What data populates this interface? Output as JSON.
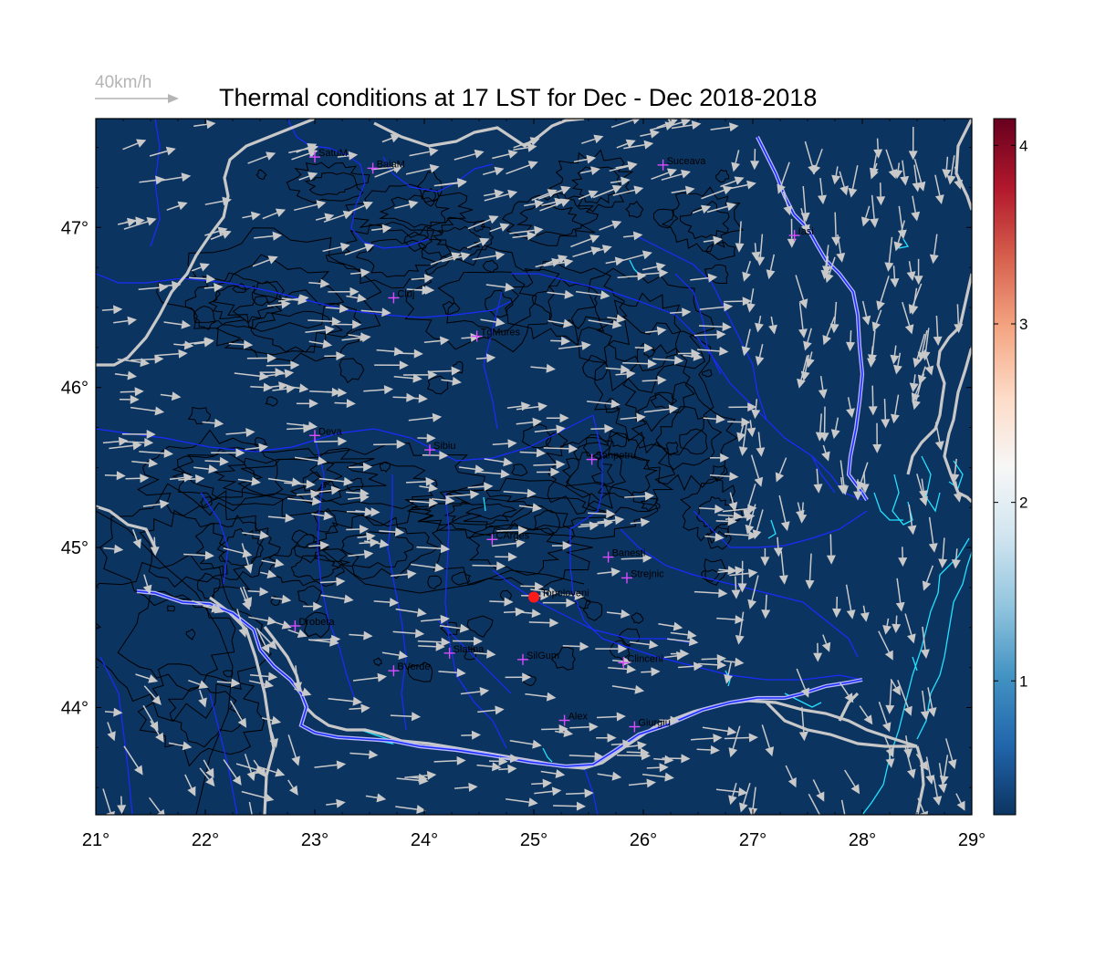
{
  "title": "Thermal conditions at 17 LST for Dec - Dec  2018-2018",
  "wind_scale_label": "40km/h",
  "map": {
    "lon_range": [
      21,
      29
    ],
    "lat_range": [
      43.33,
      47.68
    ],
    "lon_ticks": [
      {
        "value": 21,
        "label": "21°"
      },
      {
        "value": 22,
        "label": "22°"
      },
      {
        "value": 23,
        "label": "23°"
      },
      {
        "value": 24,
        "label": "24°"
      },
      {
        "value": 25,
        "label": "25°"
      },
      {
        "value": 26,
        "label": "26°"
      },
      {
        "value": 27,
        "label": "27°"
      },
      {
        "value": 28,
        "label": "28°"
      },
      {
        "value": 29,
        "label": "29°"
      }
    ],
    "lat_ticks": [
      {
        "value": 44,
        "label": "44°"
      },
      {
        "value": 45,
        "label": "45°"
      },
      {
        "value": 46,
        "label": "46°"
      },
      {
        "value": 47,
        "label": "47°"
      }
    ],
    "background_color": "#0c3461",
    "stations": [
      {
        "name": "SatuM",
        "lon": 23.0,
        "lat": 47.44
      },
      {
        "name": "BaiaM",
        "lon": 23.53,
        "lat": 47.37
      },
      {
        "name": "Suceava",
        "lon": 26.18,
        "lat": 47.39
      },
      {
        "name": "Iasi",
        "lon": 27.38,
        "lat": 46.95
      },
      {
        "name": "Cluj",
        "lon": 23.72,
        "lat": 46.56
      },
      {
        "name": "TgMures",
        "lon": 24.48,
        "lat": 46.32
      },
      {
        "name": "Deva",
        "lon": 23.0,
        "lat": 45.7
      },
      {
        "name": "Sibiu",
        "lon": 24.05,
        "lat": 45.61
      },
      {
        "name": "Sanpetru",
        "lon": 25.53,
        "lat": 45.55
      },
      {
        "name": "CArges",
        "lon": 24.62,
        "lat": 45.05
      },
      {
        "name": "Banesti",
        "lon": 25.68,
        "lat": 44.94
      },
      {
        "name": "Strejnic",
        "lon": 25.85,
        "lat": 44.81
      },
      {
        "name": "Drobeta",
        "lon": 22.82,
        "lat": 44.51
      },
      {
        "name": "Slatina",
        "lon": 24.23,
        "lat": 44.34
      },
      {
        "name": "SilGum",
        "lon": 24.9,
        "lat": 44.3
      },
      {
        "name": "Clinceni",
        "lon": 25.82,
        "lat": 44.28
      },
      {
        "name": "BVerde",
        "lon": 23.72,
        "lat": 44.23
      },
      {
        "name": "Alex",
        "lon": 25.28,
        "lat": 43.92
      },
      {
        "name": "Giurgiu",
        "lon": 25.92,
        "lat": 43.88
      }
    ],
    "highlight_station": {
      "name": "Topoloveni",
      "lon": 25.0,
      "lat": 44.69,
      "color": "#ff1a1a"
    }
  },
  "colorbar": {
    "ticks": [
      {
        "value": 1,
        "label": "1"
      },
      {
        "value": 2,
        "label": "2"
      },
      {
        "value": 3,
        "label": "3"
      },
      {
        "value": 4,
        "label": "4"
      }
    ],
    "range": [
      0.25,
      4.15
    ],
    "colors": [
      "#0c3461",
      "#2166ac",
      "#4393c3",
      "#92c5de",
      "#d1e5f0",
      "#f7f7f7",
      "#fddbc7",
      "#f4a582",
      "#d6604d",
      "#b2182b",
      "#67001f"
    ]
  }
}
